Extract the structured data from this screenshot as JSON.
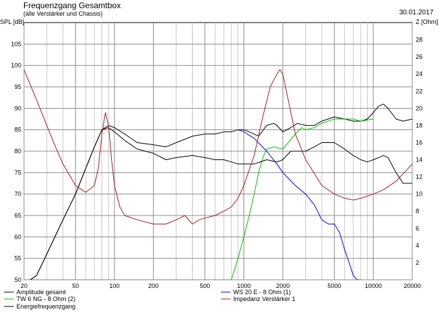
{
  "header": {
    "title": "Frequenzgang Gesamtbox",
    "subtitle": "(alle Verstärker und Chassis)",
    "date": "30.01.2017"
  },
  "chart_data": {
    "type": "line",
    "title": "Frequenzgang Gesamtbox",
    "ylabel": "SPL [dB]",
    "y2label": "Z [Ohm]",
    "xscale": "log",
    "xlim": [
      20,
      20000
    ],
    "ylim": [
      50,
      110
    ],
    "y2lim": [
      0,
      30
    ],
    "grid": true,
    "legend_position": "bottom",
    "x_ticks": [
      20,
      50,
      100,
      200,
      500,
      1000,
      2000,
      5000,
      10000,
      20000
    ],
    "y_ticks": [
      50,
      55,
      60,
      65,
      70,
      75,
      80,
      85,
      90,
      95,
      100,
      105
    ],
    "y2_ticks": [
      2,
      4,
      6,
      8,
      10,
      12,
      14,
      16,
      18,
      20,
      22,
      24,
      26,
      28
    ],
    "series": [
      {
        "name": "Amplitude gesamt",
        "color": "#000000",
        "axis": "left",
        "x": [
          20,
          25,
          30,
          40,
          50,
          60,
          70,
          80,
          90,
          100,
          120,
          150,
          200,
          250,
          300,
          400,
          500,
          600,
          700,
          800,
          900,
          1000,
          1100,
          1200,
          1300,
          1500,
          1700,
          1800,
          2000,
          2300,
          2600,
          3000,
          3500,
          4000,
          5000,
          6000,
          7000,
          8000,
          9000,
          10000,
          11000,
          12000,
          13000,
          15000,
          17000,
          20000
        ],
        "y": [
          49,
          51,
          56,
          64,
          70,
          76,
          81,
          85,
          86,
          85.5,
          84,
          82,
          81.5,
          81,
          82,
          83.5,
          84,
          84,
          84.5,
          84.5,
          85,
          85,
          84.5,
          84,
          83.5,
          86,
          86.5,
          86,
          84.5,
          85.5,
          86.5,
          86,
          86,
          87,
          88,
          87.5,
          87,
          87,
          87.5,
          89,
          90.5,
          91,
          90,
          87.5,
          87,
          87.5
        ]
      },
      {
        "name": "TW 6 NG - 8 Ohm (2)",
        "color": "#00c000",
        "axis": "left",
        "x": [
          20,
          700,
          800,
          900,
          1000,
          1100,
          1200,
          1300,
          1400,
          1500,
          1700,
          2000,
          2200,
          2500,
          2800,
          3000,
          3500,
          4000,
          5000,
          6000,
          7000,
          8000,
          10000
        ],
        "y": [
          50,
          50,
          50,
          55,
          60,
          65,
          70,
          75,
          78.5,
          80.5,
          81,
          80.5,
          82,
          84,
          85.5,
          85,
          85.5,
          86.5,
          87.5,
          87.5,
          87.5,
          87,
          87.5
        ]
      },
      {
        "name": "Energiefrequenzgang",
        "color": "#000000",
        "axis": "left",
        "x": [
          20,
          25,
          30,
          40,
          50,
          60,
          70,
          80,
          90,
          100,
          120,
          150,
          200,
          250,
          300,
          400,
          500,
          600,
          700,
          800,
          900,
          1000,
          1200,
          1500,
          1800,
          2000,
          2300,
          2600,
          3000,
          3500,
          4000,
          5000,
          6000,
          7000,
          8000,
          9000,
          10000,
          11000,
          12000,
          13000,
          15000,
          17000,
          20000
        ],
        "y": [
          49,
          51,
          56,
          64,
          70,
          76,
          81,
          85,
          85.5,
          84.5,
          82.5,
          80.5,
          79.5,
          78,
          78.5,
          79,
          78.5,
          78,
          78,
          77.5,
          77,
          77,
          77,
          78,
          77.5,
          78,
          80,
          80,
          80,
          81,
          82,
          82,
          80.5,
          79,
          78,
          77.5,
          78,
          78.5,
          79,
          78.5,
          75,
          72.5,
          72.5
        ]
      },
      {
        "name": "WS 20 E - 8 Ohm  (1)",
        "color": "#0000ff",
        "axis": "left",
        "x": [
          900,
          1000,
          1200,
          1500,
          1800,
          2000,
          2500,
          3000,
          3500,
          4000,
          4500,
          5000,
          5500,
          6000,
          6500,
          7000,
          7500,
          8000
        ],
        "y": [
          85,
          84.5,
          83,
          80,
          77,
          75,
          72,
          70,
          67.5,
          64,
          63,
          63,
          61,
          57,
          54,
          51,
          50,
          50
        ]
      },
      {
        "name": "Impedanz Verstärker 1",
        "color": "#a02020",
        "axis": "right",
        "x": [
          20,
          25,
          30,
          35,
          40,
          50,
          60,
          70,
          75,
          80,
          85,
          90,
          95,
          100,
          110,
          120,
          150,
          200,
          250,
          300,
          350,
          400,
          450,
          500,
          600,
          700,
          800,
          900,
          1000,
          1200,
          1400,
          1600,
          1800,
          1900,
          2000,
          2200,
          2500,
          3000,
          4000,
          5000,
          6000,
          7000,
          8000,
          10000,
          12000,
          15000,
          20000
        ],
        "y": [
          24.5,
          21,
          18,
          15.5,
          13.5,
          11,
          10.2,
          11,
          13,
          17,
          19.5,
          18,
          14,
          11,
          8.5,
          7.5,
          7,
          6.5,
          6.5,
          7,
          7.5,
          6.5,
          7,
          7.2,
          7.5,
          8,
          8.5,
          9.5,
          11,
          14.5,
          19,
          22.5,
          24,
          24.5,
          24,
          21,
          17,
          14,
          11,
          10,
          9.5,
          9.3,
          9.5,
          10,
          10.5,
          11.5,
          13.5
        ]
      }
    ]
  }
}
